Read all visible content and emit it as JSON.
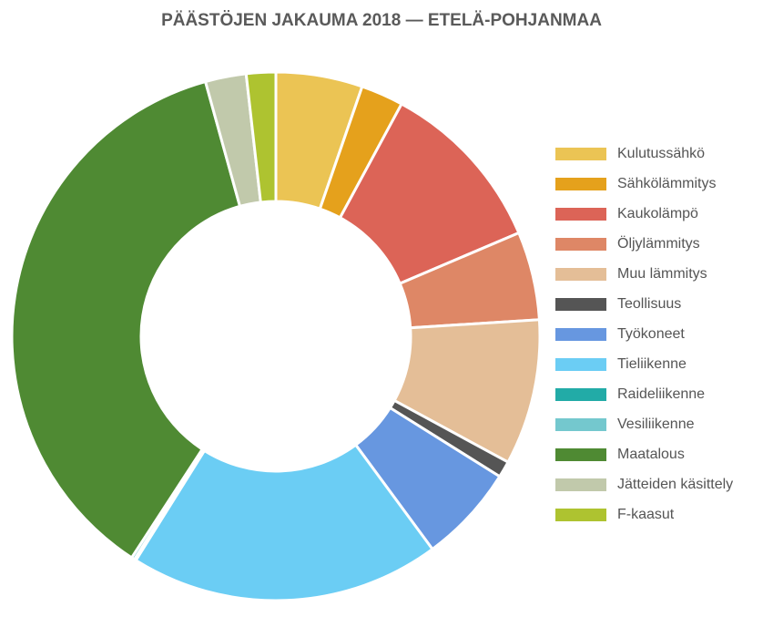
{
  "chart_data": {
    "type": "donut",
    "title": "PÄÄSTÖJEN JAKAUMA 2018 — ETELÄ-POHJANMAA",
    "legend_position": "right",
    "slices": [
      {
        "label": "Kulutussähkö",
        "value": 5.3,
        "color": "#EBC454"
      },
      {
        "label": "Sähkölämmitys",
        "value": 2.6,
        "color": "#E5A11C"
      },
      {
        "label": "Kaukolämpö",
        "value": 10.7,
        "color": "#DC6457"
      },
      {
        "label": "Öljylämmitys",
        "value": 5.4,
        "color": "#DE8766"
      },
      {
        "label": "Muu lämmitys",
        "value": 8.9,
        "color": "#E4BE97"
      },
      {
        "label": "Teollisuus",
        "value": 1.0,
        "color": "#555555"
      },
      {
        "label": "Työkoneet",
        "value": 6.0,
        "color": "#6797E0"
      },
      {
        "label": "Tieliikenne",
        "value": 19.0,
        "color": "#6BCDF4"
      },
      {
        "label": "Raideliikenne",
        "value": 0.1,
        "color": "#22ABA7"
      },
      {
        "label": "Vesiliikenne",
        "value": 0.2,
        "color": "#74C8CE"
      },
      {
        "label": "Maatalous",
        "value": 36.5,
        "color": "#4F8A33"
      },
      {
        "label": "Jätteiden käsittely",
        "value": 2.5,
        "color": "#C1C9AB"
      },
      {
        "label": "F-kaasut",
        "value": 1.8,
        "color": "#AEC330"
      }
    ]
  }
}
